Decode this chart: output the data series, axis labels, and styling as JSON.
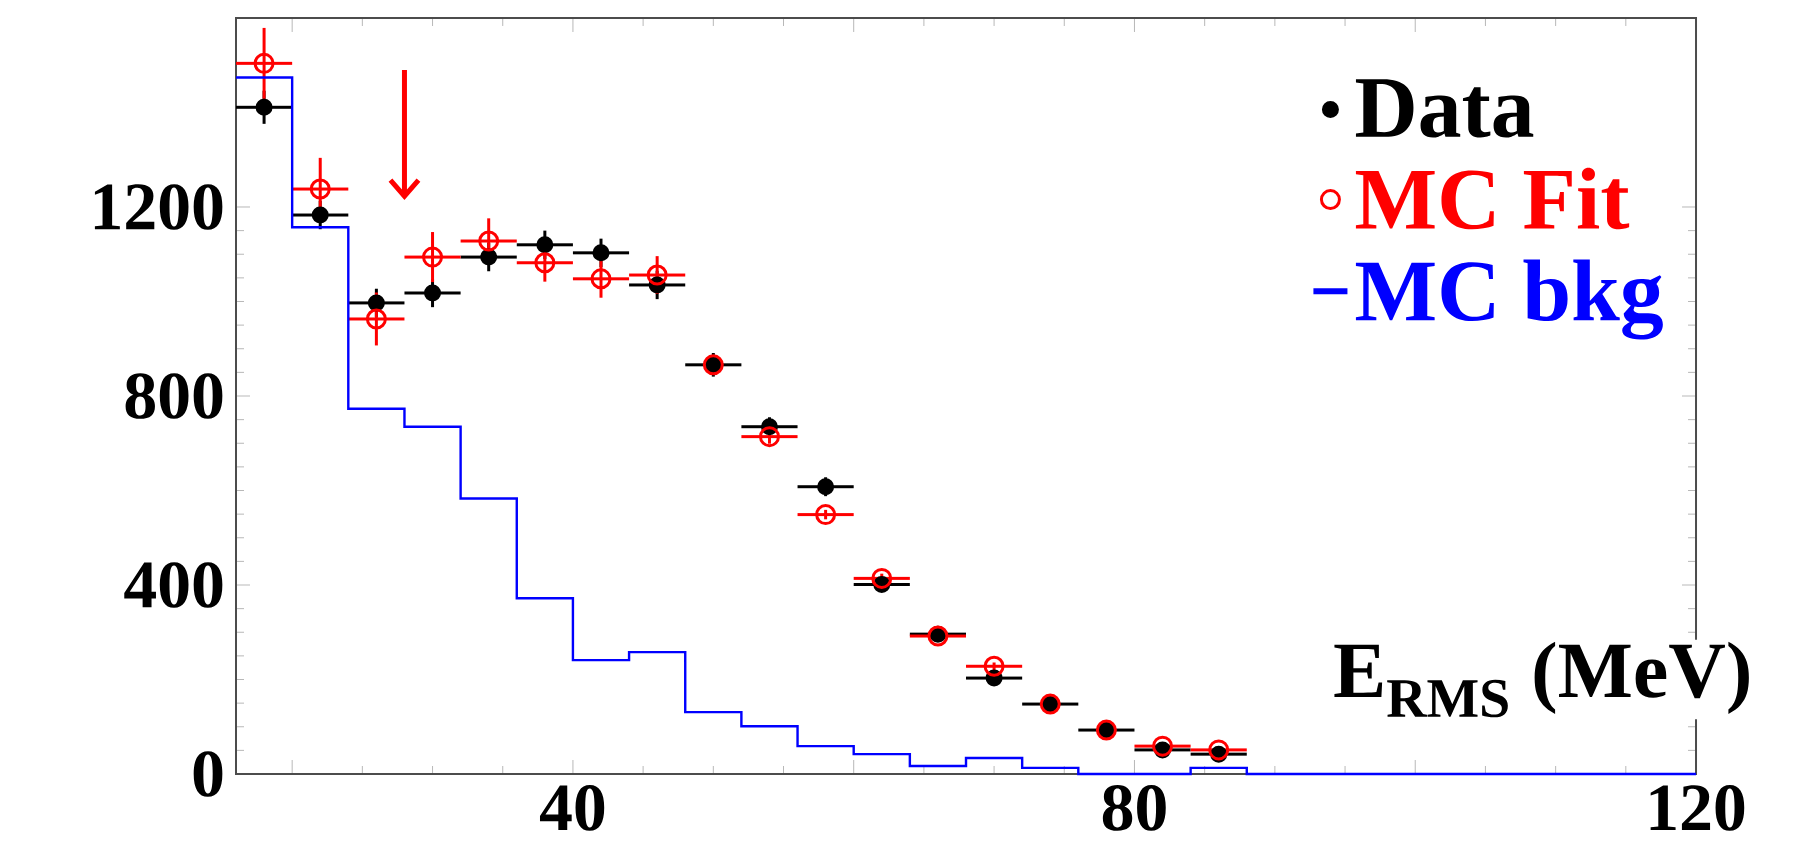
{
  "chart_data": {
    "type": "scatter",
    "xlabel": "E$_{RMS}$ (MeV)",
    "xlim": [
      16,
      120
    ],
    "ylim": [
      0,
      1600
    ],
    "xticks": [
      {
        "value": 20,
        "label": null
      },
      40,
      {
        "value": 60,
        "label": null
      },
      80,
      {
        "value": 100,
        "label": null
      },
      120
    ],
    "yticks": [
      0,
      400,
      800,
      1200
    ],
    "legend": "top right",
    "grid": false,
    "marker": "circle",
    "series": [
      {
        "name": "Data",
        "color": "#000000",
        "x": [
          18,
          22,
          26,
          30,
          34,
          38,
          42,
          46,
          50,
          54,
          58,
          62,
          66,
          70,
          74,
          78,
          82,
          86
        ],
        "values": [
          1411,
          1183,
          997,
          1018,
          1094,
          1120,
          1103,
          1035,
          866,
          735,
          608,
          401,
          296,
          203,
          148,
          93,
          51,
          42
        ],
        "errors": [
          35,
          30,
          30,
          30,
          30,
          30,
          30,
          30,
          25,
          20,
          20,
          15,
          15,
          12,
          10,
          10,
          8,
          8
        ],
        "xerrors": [
          2,
          2,
          2,
          2,
          2,
          2,
          2,
          2,
          2,
          2,
          2,
          2,
          2,
          2,
          2,
          2,
          2,
          2
        ]
      },
      {
        "name": "MC Fit",
        "color": "#ff0000",
        "x": [
          18,
          22,
          26,
          30,
          34,
          38,
          42,
          46,
          50,
          54,
          58,
          62,
          66,
          70,
          74,
          78,
          82,
          86
        ],
        "values": [
          1504,
          1238,
          963,
          1094,
          1128,
          1082,
          1048,
          1056,
          866,
          714,
          549,
          414,
          292,
          228,
          148,
          93,
          59,
          51
        ],
        "errors": [
          75,
          66,
          56,
          53,
          48,
          40,
          40,
          40,
          20,
          15,
          10,
          10,
          10,
          8,
          8,
          8,
          8,
          8
        ],
        "xerrors": [
          2,
          2,
          2,
          2,
          2,
          2,
          2,
          2,
          null,
          2,
          2,
          2,
          2,
          2,
          null,
          null,
          2,
          2
        ]
      },
      {
        "name": "MC bkg",
        "type": "histogram",
        "color": "#0000ff",
        "bins": [
          16,
          20,
          24,
          28,
          32,
          36,
          40,
          44,
          48,
          52,
          56,
          60,
          64,
          68,
          72,
          76,
          80,
          84,
          88,
          92,
          96,
          100,
          104,
          108,
          112,
          116,
          120
        ],
        "values": [
          1474,
          1157,
          773,
          735,
          583,
          372,
          241,
          258,
          131,
          101,
          59,
          42,
          17,
          34,
          13,
          0,
          0,
          13,
          0,
          0,
          0,
          0,
          0,
          0,
          0,
          0
        ]
      }
    ]
  }
}
